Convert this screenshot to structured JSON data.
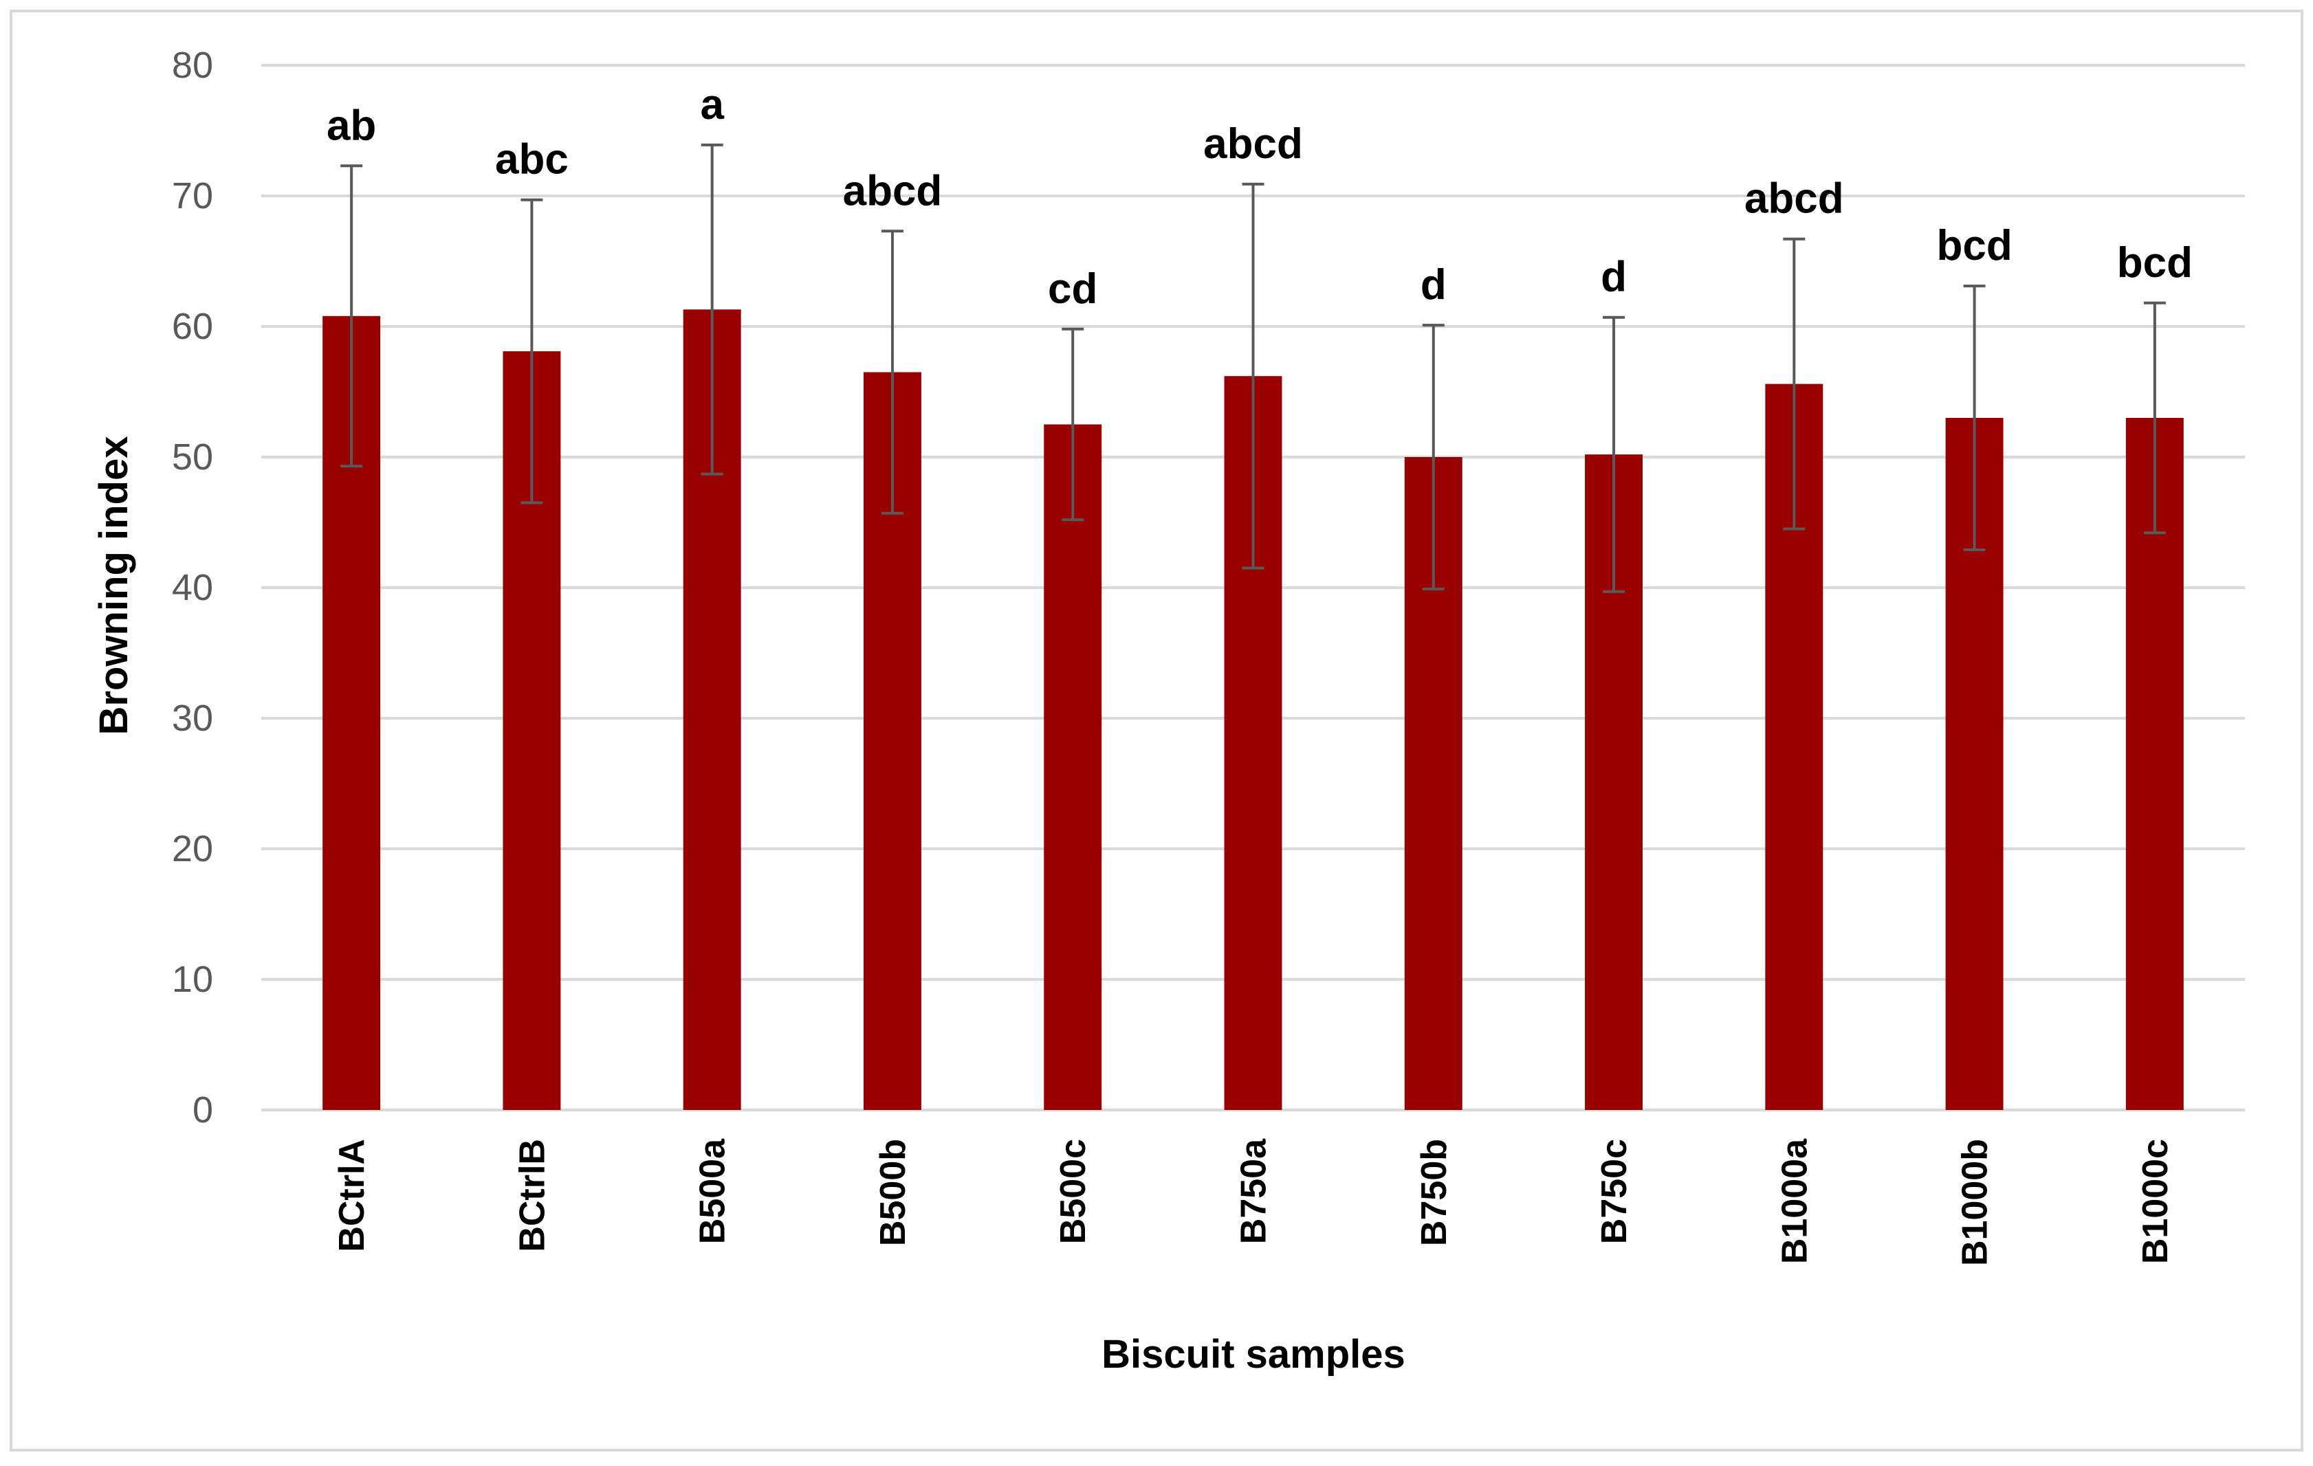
{
  "chart_data": {
    "type": "bar",
    "title": "",
    "xlabel": "Biscuit samples",
    "ylabel": "Browning index",
    "ylim": [
      0,
      80
    ],
    "yticks": [
      0,
      10,
      20,
      30,
      40,
      50,
      60,
      70,
      80
    ],
    "grid": true,
    "legend": "none",
    "bar_color": "#990000",
    "error_bar_color": "#595959",
    "categories": [
      "BCtrlA",
      "BCtrlB",
      "B500a",
      "B500b",
      "B500c",
      "B750a",
      "B750b",
      "B750c",
      "B1000a",
      "B1000b",
      "B1000c"
    ],
    "values": [
      60.8,
      58.1,
      61.3,
      56.5,
      52.5,
      56.2,
      50.0,
      50.2,
      55.6,
      53.0,
      53.0
    ],
    "errors": [
      11.5,
      11.6,
      12.6,
      10.8,
      7.3,
      14.7,
      10.1,
      10.5,
      11.1,
      10.1,
      8.8
    ],
    "significance_labels": [
      "ab",
      "abc",
      "a",
      "abcd",
      "cd",
      "abcd",
      "d",
      "d",
      "abcd",
      "bcd",
      "bcd"
    ]
  }
}
